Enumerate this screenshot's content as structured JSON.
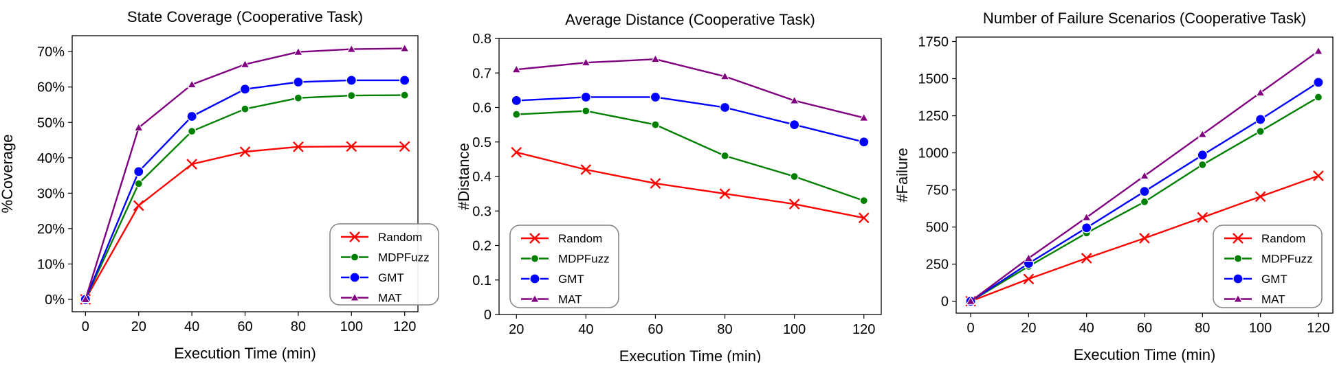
{
  "colors": {
    "Random": "#ff0000",
    "MDPFuzz": "#008000",
    "GMT": "#0000ff",
    "MAT": "#800080"
  },
  "markers": {
    "Random": "x",
    "MDPFuzz": "circle-small",
    "GMT": "circle",
    "MAT": "triangle"
  },
  "chart_data": [
    {
      "type": "line",
      "title": "State Coverage (Cooperative Task)",
      "xlabel": "Execution Time (min)",
      "ylabel": "%Coverage",
      "x": [
        0,
        20,
        40,
        60,
        80,
        100,
        120
      ],
      "xticks": [
        "0",
        "20",
        "40",
        "60",
        "80",
        "100",
        "120"
      ],
      "xlim": [
        -5,
        125
      ],
      "yticks": [
        0,
        10,
        20,
        30,
        40,
        50,
        60,
        70
      ],
      "ytick_labels": [
        "0%",
        "10%",
        "20%",
        "30%",
        "40%",
        "50%",
        "60%",
        "70%"
      ],
      "ylim": [
        -3.5,
        74.5
      ],
      "grid": false,
      "legend_position": "lower-right",
      "series": [
        {
          "name": "Random",
          "values": [
            0,
            26.5,
            38.2,
            41.7,
            43.1,
            43.2,
            43.2
          ]
        },
        {
          "name": "MDPFuzz",
          "values": [
            0,
            32.7,
            47.5,
            53.8,
            56.9,
            57.6,
            57.7
          ]
        },
        {
          "name": "GMT",
          "values": [
            0,
            36.1,
            51.7,
            59.4,
            61.4,
            61.9,
            61.9
          ]
        },
        {
          "name": "MAT",
          "values": [
            0,
            48.5,
            60.7,
            66.4,
            69.9,
            70.7,
            70.9
          ]
        }
      ]
    },
    {
      "type": "line",
      "title": "Average Distance (Cooperative Task)",
      "xlabel": "Execution Time (min)",
      "ylabel": "#Distance",
      "x": [
        20,
        40,
        60,
        80,
        100,
        120
      ],
      "xticks": [
        "20",
        "40",
        "60",
        "80",
        "100",
        "120"
      ],
      "xlim": [
        15,
        125
      ],
      "yticks": [
        0,
        0.1,
        0.2,
        0.3,
        0.4,
        0.5,
        0.6,
        0.7,
        0.8
      ],
      "ytick_labels": [
        "0",
        "0.1",
        "0.2",
        "0.3",
        "0.4",
        "0.5",
        "0.6",
        "0.7",
        "0.8"
      ],
      "ylim": [
        0,
        0.8
      ],
      "grid": false,
      "legend_position": "lower-left",
      "series": [
        {
          "name": "Random",
          "values": [
            0.47,
            0.42,
            0.38,
            0.35,
            0.32,
            0.28
          ]
        },
        {
          "name": "MDPFuzz",
          "values": [
            0.58,
            0.59,
            0.55,
            0.46,
            0.4,
            0.33
          ]
        },
        {
          "name": "GMT",
          "values": [
            0.62,
            0.63,
            0.63,
            0.6,
            0.55,
            0.5
          ]
        },
        {
          "name": "MAT",
          "values": [
            0.71,
            0.73,
            0.74,
            0.69,
            0.62,
            0.57
          ]
        }
      ]
    },
    {
      "type": "line",
      "title": "Number of Failure Scenarios (Cooperative Task)",
      "xlabel": "Execution Time (min)",
      "ylabel": "#Failure",
      "x": [
        0,
        20,
        40,
        60,
        80,
        100,
        120
      ],
      "xticks": [
        "0",
        "20",
        "40",
        "60",
        "80",
        "100",
        "120"
      ],
      "xlim": [
        -5,
        125
      ],
      "yticks": [
        0,
        250,
        500,
        750,
        1000,
        1250,
        1500,
        1750
      ],
      "ytick_labels": [
        "0",
        "250",
        "500",
        "750",
        "1000",
        "1250",
        "1500",
        "1750"
      ],
      "ylim": [
        -80,
        1780
      ],
      "grid": false,
      "legend_position": "lower-right",
      "series": [
        {
          "name": "Random",
          "values": [
            0,
            150,
            290,
            425,
            565,
            705,
            845
          ]
        },
        {
          "name": "MDPFuzz",
          "values": [
            0,
            235,
            460,
            670,
            920,
            1145,
            1375
          ]
        },
        {
          "name": "GMT",
          "values": [
            0,
            255,
            495,
            740,
            985,
            1225,
            1475
          ]
        },
        {
          "name": "MAT",
          "values": [
            0,
            290,
            565,
            845,
            1125,
            1405,
            1685
          ]
        }
      ]
    }
  ]
}
